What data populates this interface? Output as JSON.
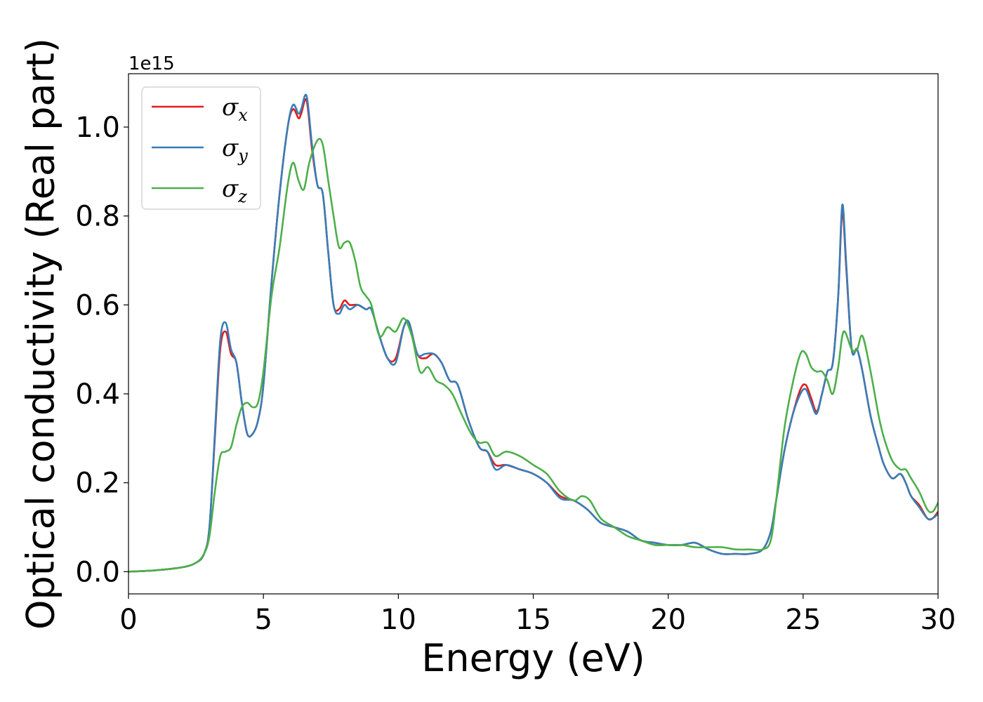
{
  "chart_data": {
    "type": "line",
    "xlabel": "Energy (eV)",
    "ylabel": "Optical conductivity (Real part)",
    "y_offset_text": "1e15",
    "xlim": [
      0,
      30
    ],
    "ylim": [
      -0.05,
      1.12
    ],
    "x_ticks": [
      0,
      5,
      10,
      15,
      20,
      25,
      30
    ],
    "x_tick_labels": [
      "0",
      "5",
      "10",
      "15",
      "20",
      "25",
      "30"
    ],
    "y_ticks": [
      0.0,
      0.2,
      0.4,
      0.6,
      0.8,
      1.0
    ],
    "y_tick_labels": [
      "0.0",
      "0.2",
      "0.4",
      "0.6",
      "0.8",
      "1.0"
    ],
    "grid": false,
    "legend_position": "top-left",
    "series": [
      {
        "name": "σx",
        "symbol": "σ",
        "subscript": "x",
        "color": "#e41a1c",
        "x": [
          0,
          1,
          2,
          2.5,
          2.8,
          3.0,
          3.2,
          3.4,
          3.6,
          3.8,
          4.0,
          4.2,
          4.4,
          4.6,
          4.8,
          5.0,
          5.3,
          5.6,
          5.9,
          6.1,
          6.3,
          6.4,
          6.6,
          6.8,
          7.0,
          7.2,
          7.4,
          7.6,
          7.8,
          8.0,
          8.2,
          8.5,
          8.8,
          9.0,
          9.3,
          9.6,
          9.9,
          10.2,
          10.4,
          10.7,
          11.0,
          11.3,
          11.6,
          11.9,
          12.2,
          12.6,
          13.0,
          13.3,
          13.6,
          14.0,
          14.5,
          15.0,
          15.5,
          16.0,
          16.5,
          17.0,
          17.5,
          18.0,
          18.5,
          19.0,
          19.5,
          20.0,
          20.5,
          21.0,
          21.5,
          22.0,
          22.5,
          23.0,
          23.5,
          23.8,
          24.0,
          24.3,
          24.6,
          24.9,
          25.1,
          25.3,
          25.5,
          25.7,
          25.9,
          26.1,
          26.3,
          26.45,
          26.6,
          26.8,
          27.0,
          27.2,
          27.5,
          27.8,
          28.0,
          28.3,
          28.6,
          28.8,
          29.0,
          29.3,
          29.6,
          29.8,
          30.0
        ],
        "values": [
          0.0,
          0.003,
          0.01,
          0.02,
          0.04,
          0.1,
          0.3,
          0.5,
          0.54,
          0.49,
          0.47,
          0.38,
          0.31,
          0.31,
          0.34,
          0.42,
          0.65,
          0.85,
          1.0,
          1.04,
          1.02,
          1.03,
          1.06,
          0.95,
          0.87,
          0.85,
          0.72,
          0.6,
          0.59,
          0.61,
          0.6,
          0.6,
          0.59,
          0.59,
          0.53,
          0.48,
          0.48,
          0.55,
          0.56,
          0.49,
          0.48,
          0.49,
          0.47,
          0.43,
          0.42,
          0.34,
          0.28,
          0.27,
          0.24,
          0.24,
          0.23,
          0.22,
          0.2,
          0.17,
          0.16,
          0.14,
          0.11,
          0.1,
          0.09,
          0.07,
          0.065,
          0.06,
          0.06,
          0.065,
          0.05,
          0.04,
          0.04,
          0.04,
          0.05,
          0.09,
          0.16,
          0.27,
          0.35,
          0.41,
          0.42,
          0.39,
          0.36,
          0.4,
          0.45,
          0.47,
          0.62,
          0.81,
          0.68,
          0.5,
          0.5,
          0.45,
          0.35,
          0.28,
          0.24,
          0.21,
          0.22,
          0.2,
          0.17,
          0.15,
          0.12,
          0.12,
          0.135
        ]
      },
      {
        "name": "σy",
        "symbol": "σ",
        "subscript": "y",
        "color": "#377eb8",
        "x": [
          0,
          1,
          2,
          2.5,
          2.8,
          3.0,
          3.2,
          3.4,
          3.6,
          3.8,
          4.0,
          4.2,
          4.4,
          4.6,
          4.8,
          5.0,
          5.3,
          5.6,
          5.9,
          6.1,
          6.3,
          6.4,
          6.6,
          6.8,
          7.0,
          7.2,
          7.4,
          7.6,
          7.8,
          8.0,
          8.2,
          8.5,
          8.8,
          9.0,
          9.3,
          9.6,
          9.9,
          10.2,
          10.4,
          10.7,
          11.0,
          11.3,
          11.6,
          11.9,
          12.2,
          12.6,
          13.0,
          13.3,
          13.6,
          14.0,
          14.5,
          15.0,
          15.5,
          16.0,
          16.5,
          17.0,
          17.5,
          18.0,
          18.5,
          19.0,
          19.5,
          20.0,
          20.5,
          21.0,
          21.5,
          22.0,
          22.5,
          23.0,
          23.5,
          23.8,
          24.0,
          24.3,
          24.6,
          24.9,
          25.1,
          25.3,
          25.5,
          25.7,
          25.9,
          26.1,
          26.3,
          26.45,
          26.6,
          26.8,
          27.0,
          27.2,
          27.5,
          27.8,
          28.0,
          28.3,
          28.6,
          28.8,
          29.0,
          29.3,
          29.6,
          29.8,
          30.0
        ],
        "values": [
          0.0,
          0.003,
          0.01,
          0.02,
          0.04,
          0.1,
          0.31,
          0.52,
          0.56,
          0.5,
          0.47,
          0.38,
          0.31,
          0.31,
          0.34,
          0.42,
          0.65,
          0.85,
          1.0,
          1.05,
          1.03,
          1.04,
          1.07,
          0.96,
          0.87,
          0.85,
          0.72,
          0.6,
          0.58,
          0.6,
          0.59,
          0.6,
          0.59,
          0.59,
          0.53,
          0.48,
          0.47,
          0.55,
          0.56,
          0.49,
          0.49,
          0.49,
          0.47,
          0.43,
          0.42,
          0.34,
          0.28,
          0.27,
          0.23,
          0.24,
          0.23,
          0.22,
          0.2,
          0.165,
          0.16,
          0.14,
          0.11,
          0.1,
          0.09,
          0.07,
          0.065,
          0.06,
          0.06,
          0.065,
          0.05,
          0.04,
          0.04,
          0.04,
          0.05,
          0.09,
          0.16,
          0.27,
          0.35,
          0.4,
          0.41,
          0.38,
          0.355,
          0.4,
          0.45,
          0.47,
          0.62,
          0.825,
          0.69,
          0.5,
          0.5,
          0.45,
          0.35,
          0.28,
          0.24,
          0.21,
          0.22,
          0.2,
          0.17,
          0.145,
          0.12,
          0.12,
          0.13
        ]
      },
      {
        "name": "σz",
        "symbol": "σ",
        "subscript": "z",
        "color": "#4daf4a",
        "x": [
          0,
          1,
          2,
          2.5,
          2.8,
          3.0,
          3.2,
          3.4,
          3.6,
          3.8,
          4.0,
          4.2,
          4.4,
          4.6,
          4.8,
          5.0,
          5.3,
          5.6,
          5.9,
          6.1,
          6.3,
          6.5,
          6.7,
          7.0,
          7.2,
          7.4,
          7.6,
          7.8,
          8.0,
          8.2,
          8.4,
          8.6,
          8.8,
          9.0,
          9.3,
          9.6,
          9.9,
          10.2,
          10.5,
          10.8,
          11.1,
          11.4,
          11.7,
          12.0,
          12.3,
          12.7,
          13.0,
          13.3,
          13.6,
          14.0,
          14.5,
          15.0,
          15.5,
          16.0,
          16.5,
          16.8,
          17.1,
          17.5,
          18.0,
          18.5,
          19.0,
          19.5,
          20.0,
          20.5,
          21.0,
          21.5,
          22.0,
          22.5,
          23.0,
          23.5,
          23.8,
          24.0,
          24.3,
          24.6,
          24.9,
          25.1,
          25.3,
          25.5,
          25.7,
          25.9,
          26.1,
          26.3,
          26.5,
          26.8,
          27.0,
          27.2,
          27.5,
          27.8,
          28.0,
          28.3,
          28.6,
          28.8,
          29.0,
          29.3,
          29.6,
          29.8,
          30.0
        ],
        "values": [
          0.0,
          0.003,
          0.01,
          0.02,
          0.04,
          0.08,
          0.18,
          0.26,
          0.27,
          0.28,
          0.33,
          0.37,
          0.38,
          0.37,
          0.38,
          0.45,
          0.62,
          0.73,
          0.87,
          0.92,
          0.88,
          0.86,
          0.92,
          0.97,
          0.96,
          0.88,
          0.8,
          0.73,
          0.74,
          0.74,
          0.7,
          0.64,
          0.62,
          0.6,
          0.53,
          0.55,
          0.54,
          0.57,
          0.53,
          0.45,
          0.46,
          0.43,
          0.42,
          0.4,
          0.36,
          0.31,
          0.29,
          0.29,
          0.26,
          0.27,
          0.26,
          0.24,
          0.22,
          0.18,
          0.16,
          0.17,
          0.16,
          0.12,
          0.1,
          0.08,
          0.07,
          0.06,
          0.06,
          0.06,
          0.055,
          0.055,
          0.055,
          0.05,
          0.05,
          0.05,
          0.07,
          0.16,
          0.32,
          0.42,
          0.49,
          0.49,
          0.46,
          0.45,
          0.45,
          0.43,
          0.4,
          0.46,
          0.54,
          0.5,
          0.5,
          0.53,
          0.45,
          0.35,
          0.3,
          0.25,
          0.23,
          0.23,
          0.21,
          0.18,
          0.14,
          0.135,
          0.155
        ]
      }
    ]
  }
}
